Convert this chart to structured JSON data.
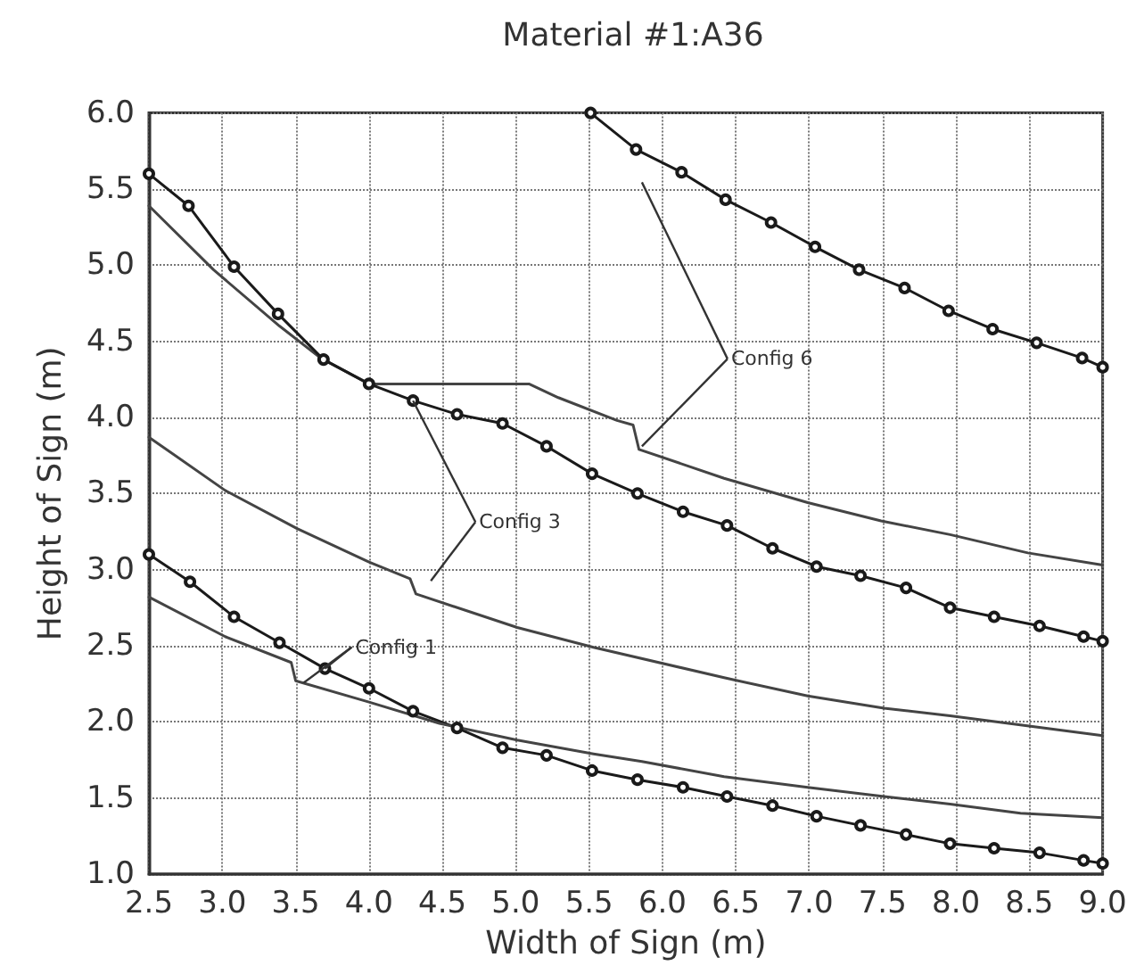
{
  "chart_data": {
    "type": "line",
    "title": "Material #1:A36",
    "xlabel": "Width of Sign (m)",
    "ylabel": "Height of Sign (m)",
    "xlim": [
      2.5,
      9.0
    ],
    "ylim": [
      1.0,
      6.0
    ],
    "xticks": [
      {
        "value": 2.5,
        "label": "2.5"
      },
      {
        "value": 3,
        "label": "3.0"
      },
      {
        "value": 3.5,
        "label": "3.5"
      },
      {
        "value": 4,
        "label": "4.0"
      },
      {
        "value": 4.5,
        "label": "4.5"
      },
      {
        "value": 5,
        "label": "5.0"
      },
      {
        "value": 5.5,
        "label": "5.5"
      },
      {
        "value": 6,
        "label": "6.0"
      },
      {
        "value": 6.5,
        "label": "6.5"
      },
      {
        "value": 7,
        "label": "7.0"
      },
      {
        "value": 7.5,
        "label": "7.5"
      },
      {
        "value": 8,
        "label": "8.0"
      },
      {
        "value": 8.5,
        "label": "8.5"
      },
      {
        "value": 9,
        "label": "9.0"
      }
    ],
    "yticks": [
      {
        "value": 1,
        "label": "1.0"
      },
      {
        "value": 1.5,
        "label": "1.5"
      },
      {
        "value": 2,
        "label": "2.0"
      },
      {
        "value": 2.5,
        "label": "2.5"
      },
      {
        "value": 3,
        "label": "3.0"
      },
      {
        "value": 3.5,
        "label": "3.5"
      },
      {
        "value": 4,
        "label": "4.0"
      },
      {
        "value": 4.5,
        "label": "4.5"
      },
      {
        "value": 5,
        "label": "5.0"
      },
      {
        "value": 5.5,
        "label": "5.5"
      },
      {
        "value": 6,
        "label": "6.0"
      }
    ],
    "grid": true,
    "line_style": "solid",
    "series": [
      {
        "color": "#1a1a1a",
        "marker": "circle",
        "x": [
          5.51,
          5.82,
          6.13,
          6.43,
          6.74,
          7.04,
          7.34,
          7.65,
          7.95,
          8.25,
          8.55,
          8.86,
          9.0
        ],
        "values": [
          6.0,
          5.76,
          5.61,
          5.43,
          5.28,
          5.12,
          4.97,
          4.85,
          4.7,
          4.58,
          4.49,
          4.39,
          4.33
        ]
      },
      {
        "color": "#444444",
        "marker": "none",
        "x": [
          2.5,
          2.94,
          3.39,
          3.67,
          4.0,
          5.09,
          5.29,
          5.69,
          5.8,
          5.84,
          6.42,
          6.99,
          7.49,
          7.96,
          8.49,
          9.0
        ],
        "values": [
          5.39,
          4.97,
          4.6,
          4.39,
          4.22,
          4.22,
          4.13,
          3.98,
          3.95,
          3.79,
          3.6,
          3.44,
          3.32,
          3.23,
          3.11,
          3.03
        ]
      },
      {
        "color": "#1a1a1a",
        "marker": "circle",
        "x": [
          2.5,
          2.77,
          3.08,
          3.38,
          3.69,
          4.0,
          4.3,
          4.6,
          4.91,
          5.21,
          5.52,
          5.83,
          6.14,
          6.44,
          6.75,
          7.05,
          7.35,
          7.66,
          7.96,
          8.26,
          8.57,
          8.87,
          9.0
        ],
        "values": [
          5.6,
          5.39,
          4.99,
          4.68,
          4.38,
          4.22,
          4.11,
          4.02,
          3.96,
          3.81,
          3.63,
          3.5,
          3.38,
          3.29,
          3.14,
          3.02,
          2.96,
          2.88,
          2.75,
          2.69,
          2.63,
          2.56,
          2.53
        ]
      },
      {
        "color": "#444444",
        "marker": "none",
        "x": [
          2.5,
          3.02,
          3.51,
          4.0,
          4.28,
          4.32,
          5.01,
          5.53,
          6.42,
          6.99,
          7.51,
          7.96,
          8.44,
          9.0
        ],
        "values": [
          3.87,
          3.52,
          3.27,
          3.05,
          2.94,
          2.84,
          2.62,
          2.49,
          2.29,
          2.17,
          2.09,
          2.04,
          1.98,
          1.91
        ]
      },
      {
        "color": "#1a1a1a",
        "marker": "circle",
        "x": [
          2.5,
          2.78,
          3.08,
          3.39,
          3.7,
          4.0,
          4.3,
          4.6,
          4.91,
          5.21,
          5.52,
          5.83,
          6.14,
          6.44,
          6.75,
          7.05,
          7.35,
          7.66,
          7.96,
          8.26,
          8.57,
          8.87,
          9.0
        ],
        "values": [
          3.1,
          2.92,
          2.69,
          2.52,
          2.35,
          2.22,
          2.07,
          1.96,
          1.83,
          1.78,
          1.68,
          1.62,
          1.57,
          1.51,
          1.45,
          1.38,
          1.32,
          1.26,
          1.2,
          1.17,
          1.14,
          1.09,
          1.07
        ]
      },
      {
        "color": "#444444",
        "marker": "none",
        "x": [
          2.5,
          3.02,
          3.47,
          3.5,
          4.0,
          4.48,
          5.01,
          5.53,
          5.86,
          6.42,
          6.99,
          7.51,
          7.96,
          8.44,
          9.0
        ],
        "values": [
          2.82,
          2.56,
          2.39,
          2.27,
          2.13,
          1.99,
          1.88,
          1.79,
          1.74,
          1.64,
          1.57,
          1.51,
          1.46,
          1.4,
          1.37
        ]
      }
    ],
    "annotations": [
      {
        "text": "Config 6",
        "x": 5.86,
        "y": 3.81
      },
      {
        "text": "Config 3",
        "x": 4.3,
        "y": 4.11
      },
      {
        "text": "Config 1",
        "x": 3.7,
        "y": 2.35
      }
    ]
  }
}
